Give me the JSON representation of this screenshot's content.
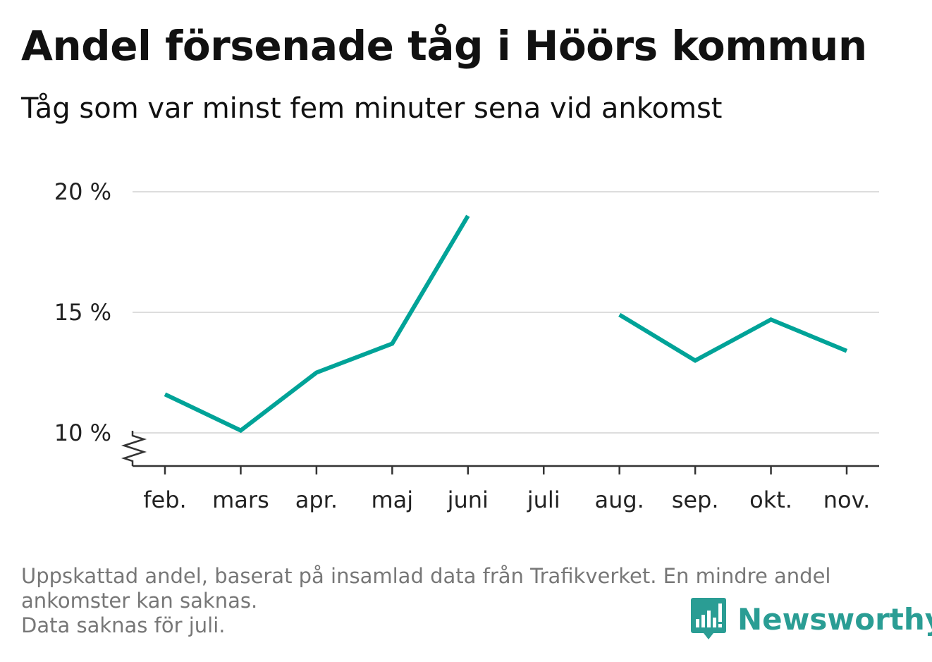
{
  "header": {
    "title": "Andel försenade tåg i Höörs kommun",
    "subtitle": "Tåg som var minst fem minuter sena vid ankomst"
  },
  "chart_data": {
    "type": "line",
    "title": "Andel försenade tåg i Höörs kommun",
    "subtitle": "Tåg som var minst fem minuter sena vid ankomst",
    "xlabel": "",
    "ylabel": "",
    "categories": [
      "feb.",
      "mars",
      "apr.",
      "maj",
      "juni",
      "juli",
      "aug.",
      "sep.",
      "okt.",
      "nov."
    ],
    "series": [
      {
        "values": [
          11.6,
          10.1,
          12.5,
          13.7,
          19.0,
          null,
          14.9,
          13.0,
          14.7,
          13.4
        ]
      }
    ],
    "ylim": [
      10,
      20
    ],
    "yticks": [
      10,
      15,
      20
    ],
    "ytick_labels": [
      "10 %",
      "15 %",
      "20 %"
    ],
    "y_axis_broken": true,
    "grid": true,
    "color": "#00a398"
  },
  "footnote": {
    "line1": "Uppskattad andel, baserat på insamlad data från Trafikverket. En mindre andel",
    "line2": "ankomster kan saknas.",
    "line3": "Data saknas för juli."
  },
  "brand": {
    "name": "Newsworthy",
    "logo_icon": "newsworthy-bar-chart-logo-icon",
    "color": "#2a9d94"
  }
}
